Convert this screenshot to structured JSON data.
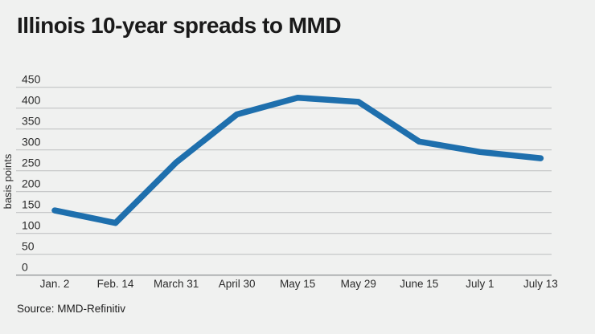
{
  "title": "Illinois 10-year spreads to MMD",
  "source": "Source: MMD-Refinitiv",
  "chart_data": {
    "type": "line",
    "title": "Illinois 10-year spreads to MMD",
    "x": [
      "Jan. 2",
      "Feb. 14",
      "March 31",
      "April 30",
      "May 15",
      "May 29",
      "June 15",
      "July 1",
      "July 13"
    ],
    "values": [
      155,
      125,
      270,
      385,
      425,
      415,
      320,
      295,
      280
    ],
    "ylabel": "basis points",
    "xlabel": "",
    "ylim": [
      0,
      450
    ],
    "ytick_step": 50,
    "grid": true,
    "legend": "none",
    "colors": {
      "line": "#1e6fad",
      "background": "#f0f1f0",
      "gridline": "#c2c3c4",
      "zero_line": "#828486",
      "text": "#2b2b2b"
    }
  }
}
